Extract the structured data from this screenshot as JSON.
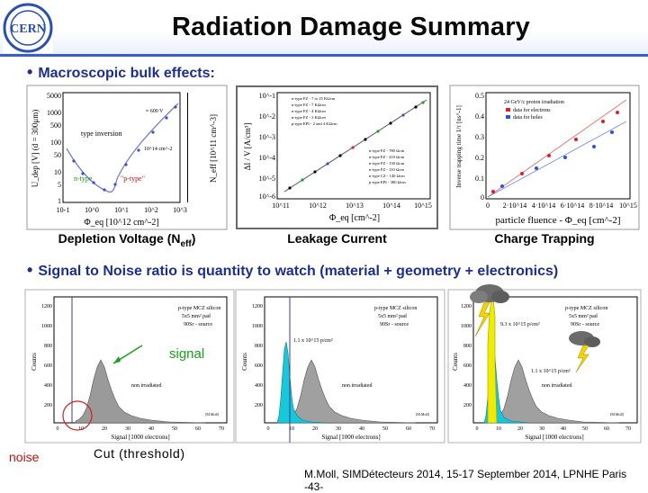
{
  "title": "Radiation Damage Summary",
  "bullets": {
    "first": "Macroscopic bulk effects:",
    "second": "Signal to Noise ratio is quantity to watch (material + geometry + electronics)"
  },
  "captions": {
    "depletion_main": "Depletion Voltage (N",
    "depletion_sub": "eff",
    "depletion_close": ")",
    "leakage": "Leakage Current",
    "trapping": "Charge Trapping"
  },
  "annotations": {
    "signal": "signal",
    "noise": "noise",
    "cut": "Cut (threshold)"
  },
  "footer": "M.Moll, SIMDétecteurs 2014, 15-17 September 2014, LPNHE Paris -43-",
  "logo_text": "CERN",
  "top_plots": {
    "depletion": {
      "ylabel": "U_dep [V] (d = 300μm)",
      "ylabel2": "N_eff [10^11 cm^-3]",
      "xlabel": "Φ_eq [10^12 cm^-2]",
      "yticks": [
        "5000",
        "1000",
        "500",
        "100",
        "50",
        "10",
        "5",
        "1"
      ],
      "xticks": [
        "10-1",
        "10^0",
        "10^1",
        "10^2",
        "10^3"
      ],
      "labels": [
        "type inversion",
        "≈ 600 V",
        "10^14 cm^-2",
        "n-type",
        "\"p-type\""
      ]
    },
    "leakage": {
      "ylabel": "ΔI / V [A/cm³]",
      "xlabel": "Φ_eq [cm^-2]",
      "yticks": [
        "10^-1",
        "10^-2",
        "10^-3",
        "10^-4",
        "10^-5",
        "10^-6"
      ],
      "xticks": [
        "10^11",
        "10^12",
        "10^13",
        "10^14",
        "10^15"
      ],
      "legend": [
        "n-type FZ - 7 to 25 KΩcm",
        "n-type FZ - 7 KΩcm",
        "n-type FZ - 4 KΩcm",
        "n-type FZ - 3 KΩcm",
        "p-type EPI - 2 and 4 KΩcm",
        "n-type FZ - 780 Ωcm",
        "n-type FZ - 410 Ωcm",
        "n-type FZ - 130 Ωcm",
        "n-type FZ - 110 Ωcm",
        "n-type CZ - 140 Ωcm",
        "p-type EPI - 380 Ωcm"
      ]
    },
    "trapping": {
      "ylabel": "Inverse trapping time 1/τ [ns^-1]",
      "xlabel": "particle fluence - Φ_eq [cm^-2]",
      "yticks": [
        "0.5",
        "0.4",
        "0.3",
        "0.2",
        "0.1",
        "0"
      ],
      "xticks": [
        "0",
        "2·10^14",
        "4·10^14",
        "6·10^14",
        "8·10^14",
        "10^15"
      ],
      "legend_title": "24 GeV/c proton irradiation",
      "legend": [
        "data for electrons",
        "data for holes"
      ]
    }
  },
  "bottom_plots": {
    "ylabel": "Counts",
    "xlabel": "Signal [1000 electrons]",
    "yticks": [
      "1200",
      "1000",
      "800",
      "600",
      "400",
      "200"
    ],
    "xticks": [
      "0",
      "10",
      "20",
      "30",
      "40",
      "50",
      "60",
      "70"
    ],
    "legend_lines": [
      "p-type MCZ silicon",
      "5x5 mm² pad",
      "90Sr - source"
    ],
    "non_irradiated": "non irradiated",
    "fluence_1": "1.1 x 10^15 p/cm²",
    "fluence_2": "9.3 x 10^15 p/cm²",
    "badge": "[M.Moll]"
  },
  "colors": {
    "accent": "#3a5fc4",
    "bullet": "#1d2f8c",
    "signal": "#1aa01a",
    "noise": "#c01010",
    "grey_hist": "#9a9a9a",
    "cyan_hist": "#18c8d8",
    "yellow_hist": "#f0ec00",
    "red_points": "#e02020",
    "blue_points": "#3050e0"
  }
}
